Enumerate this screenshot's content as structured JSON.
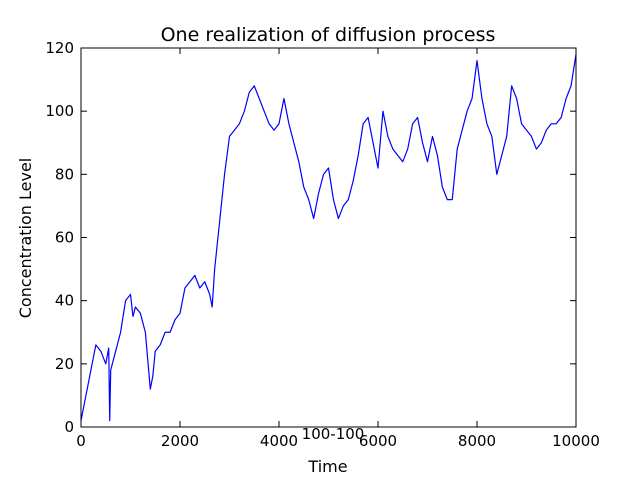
{
  "chart_data": {
    "type": "line",
    "title": "One realization of diffusion process",
    "xlabel": "Time",
    "ylabel": "Concentration Level",
    "xlim": [
      0,
      10000
    ],
    "ylim": [
      0,
      120
    ],
    "xticks": [
      0,
      2000,
      4000,
      6000,
      8000,
      10000
    ],
    "xtick_labels": [
      "0",
      "2000",
      "4000",
      "6000",
      "8000",
      "10000"
    ],
    "yticks": [
      0,
      20,
      40,
      60,
      80,
      100,
      120
    ],
    "ytick_labels": [
      "0",
      "20",
      "40",
      "60",
      "80",
      "100",
      "120"
    ],
    "grid": false,
    "annotation": "100-100",
    "series": [
      {
        "color": "#0000ff",
        "x": [
          0,
          100,
          200,
          300,
          400,
          500,
          560,
          580,
          600,
          700,
          800,
          900,
          1000,
          1050,
          1100,
          1200,
          1300,
          1400,
          1450,
          1500,
          1600,
          1700,
          1800,
          1900,
          2000,
          2100,
          2200,
          2300,
          2400,
          2500,
          2600,
          2650,
          2700,
          2800,
          2900,
          3000,
          3100,
          3200,
          3300,
          3400,
          3500,
          3600,
          3700,
          3800,
          3900,
          4000,
          4100,
          4200,
          4300,
          4400,
          4500,
          4600,
          4700,
          4800,
          4900,
          5000,
          5100,
          5200,
          5300,
          5400,
          5500,
          5600,
          5700,
          5800,
          5900,
          6000,
          6100,
          6200,
          6300,
          6400,
          6500,
          6600,
          6700,
          6800,
          6900,
          7000,
          7100,
          7200,
          7300,
          7400,
          7500,
          7600,
          7700,
          7800,
          7900,
          8000,
          8100,
          8200,
          8300,
          8400,
          8500,
          8600,
          8700,
          8800,
          8900,
          9000,
          9100,
          9200,
          9300,
          9400,
          9500,
          9600,
          9700,
          9800,
          9900,
          10000
        ],
        "y": [
          2,
          10,
          18,
          26,
          24,
          20,
          25,
          2,
          18,
          24,
          30,
          40,
          42,
          35,
          38,
          36,
          30,
          12,
          16,
          24,
          26,
          30,
          30,
          34,
          36,
          44,
          46,
          48,
          44,
          46,
          42,
          38,
          50,
          65,
          80,
          92,
          94,
          96,
          100,
          106,
          108,
          104,
          100,
          96,
          94,
          96,
          104,
          96,
          90,
          84,
          76,
          72,
          66,
          74,
          80,
          82,
          72,
          66,
          70,
          72,
          78,
          86,
          96,
          98,
          90,
          82,
          100,
          92,
          88,
          86,
          84,
          88,
          96,
          98,
          90,
          84,
          92,
          86,
          76,
          72,
          72,
          88,
          94,
          100,
          104,
          116,
          104,
          96,
          92,
          80,
          86,
          92,
          108,
          104,
          96,
          94,
          92,
          88,
          90,
          94,
          96,
          96,
          98,
          104,
          108,
          118
        ]
      }
    ]
  }
}
